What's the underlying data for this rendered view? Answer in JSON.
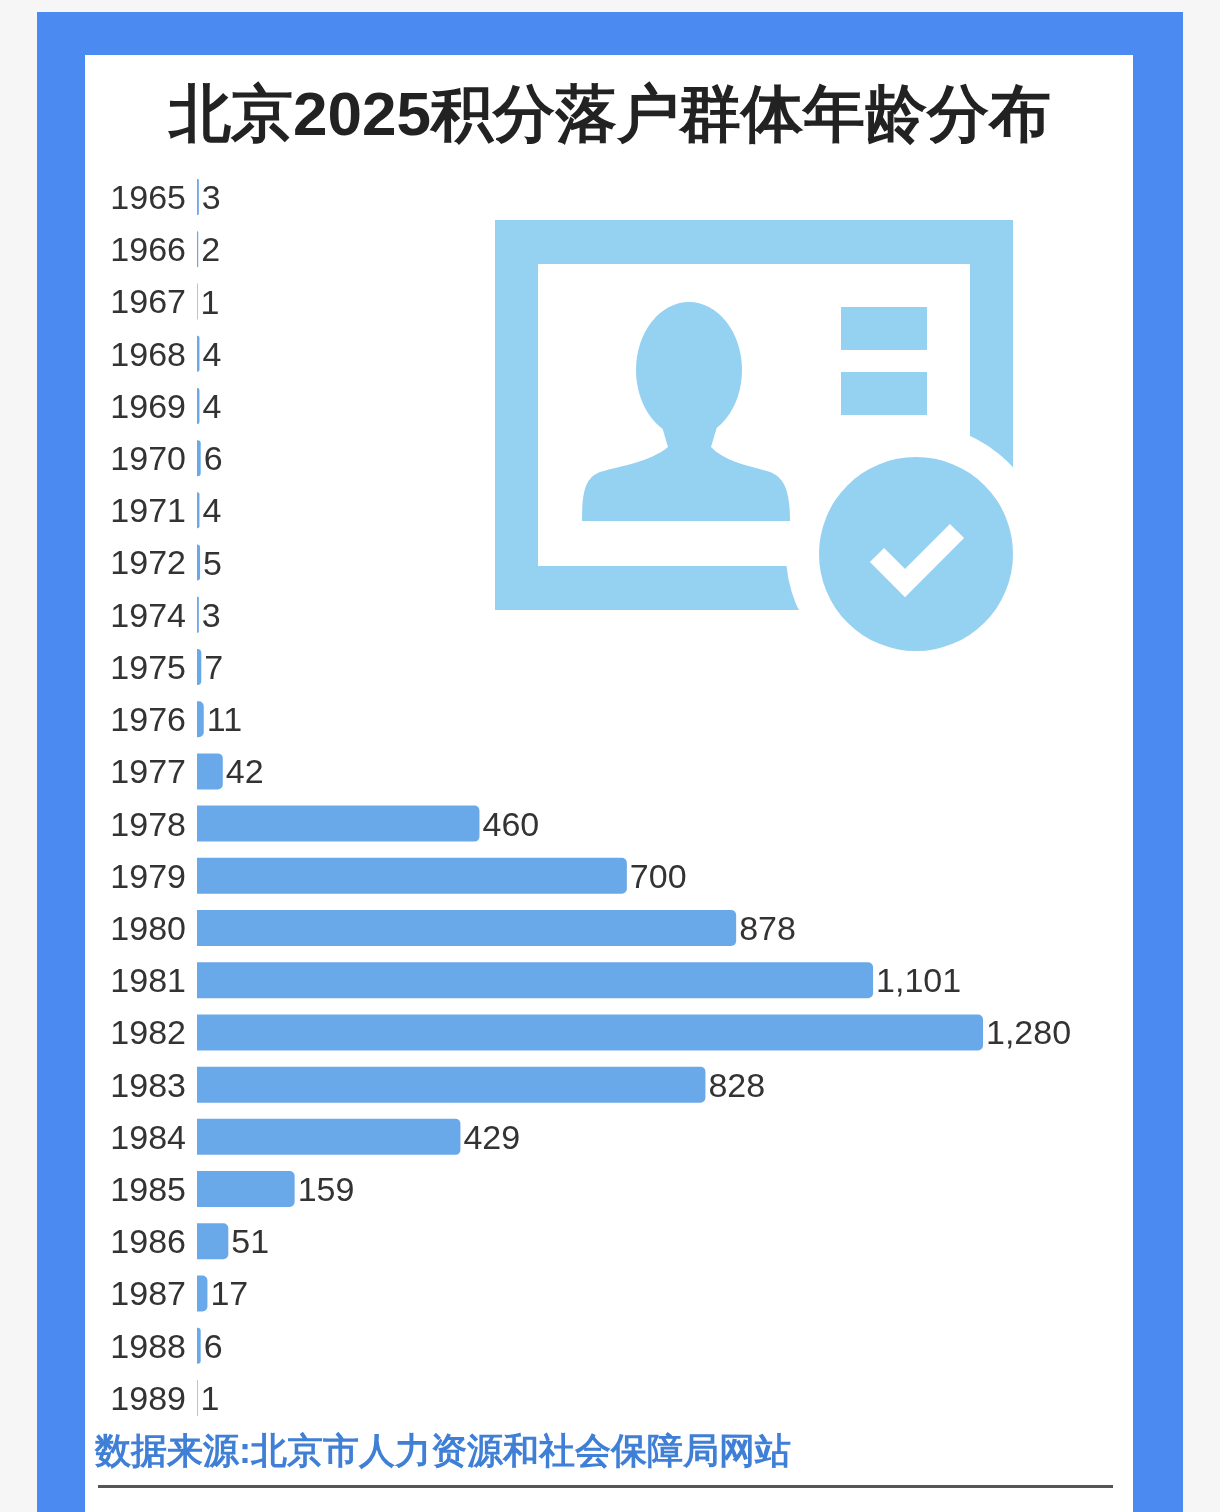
{
  "chart_data": {
    "type": "bar",
    "orientation": "horizontal",
    "title": "北京2025积分落户群体年龄分布",
    "categories": [
      "1965",
      "1966",
      "1967",
      "1968",
      "1969",
      "1970",
      "1971",
      "1972",
      "1974",
      "1975",
      "1976",
      "1977",
      "1978",
      "1979",
      "1980",
      "1981",
      "1982",
      "1983",
      "1984",
      "1985",
      "1986",
      "1987",
      "1988",
      "1989"
    ],
    "values": [
      3,
      2,
      1,
      4,
      4,
      6,
      4,
      5,
      3,
      7,
      11,
      42,
      460,
      700,
      878,
      1101,
      1280,
      828,
      429,
      159,
      51,
      17,
      6,
      1
    ],
    "value_labels": [
      "3",
      "2",
      "1",
      "4",
      "4",
      "6",
      "4",
      "5",
      "3",
      "7",
      "11",
      "42",
      "460",
      "700",
      "878",
      "1,101",
      "1,280",
      "828",
      "429",
      "159",
      "51",
      "17",
      "6",
      "1"
    ],
    "color": "#6aa9e9",
    "tick_labels": "y",
    "annotations": [
      "数据来源:北京市人力资源和社会保障局网站"
    ]
  }
}
